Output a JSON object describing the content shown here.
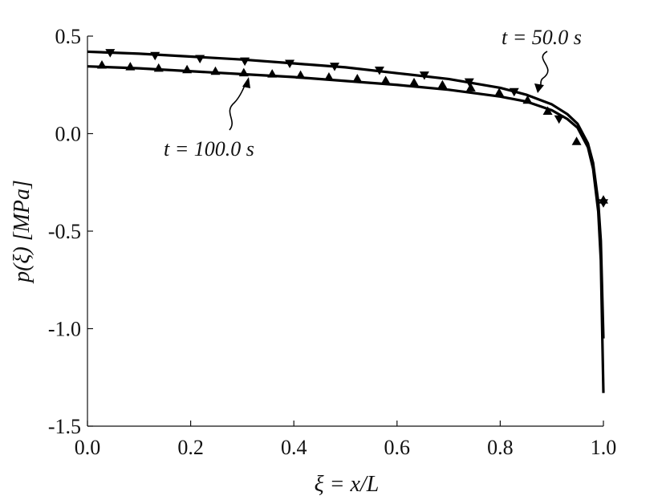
{
  "chart_data": {
    "type": "line",
    "title": "",
    "xlabel": "ξ = x/L",
    "ylabel": "p(ξ) [MPa]",
    "xlim": [
      0.0,
      1.0
    ],
    "ylim": [
      -1.5,
      0.5
    ],
    "xticks": [
      0.0,
      0.2,
      0.4,
      0.6,
      0.8,
      1.0
    ],
    "xtick_labels": [
      "0.0",
      "0.2",
      "0.4",
      "0.6",
      "0.8",
      "1.0"
    ],
    "yticks": [
      0.5,
      0.0,
      -0.5,
      -1.0,
      -1.5
    ],
    "ytick_labels": [
      "0.5",
      "0.0",
      "-0.5",
      "-1.0",
      "-1.5"
    ],
    "grid": false,
    "series": [
      {
        "name": "t = 50.0 s",
        "color": "#000000",
        "line": {
          "x": [
            0.0,
            0.1,
            0.2,
            0.3,
            0.4,
            0.5,
            0.6,
            0.7,
            0.8,
            0.85,
            0.9,
            0.93,
            0.95,
            0.97,
            0.98,
            0.99,
            0.995,
            1.0
          ],
          "y": [
            0.42,
            0.41,
            0.395,
            0.38,
            0.36,
            0.34,
            0.31,
            0.28,
            0.235,
            0.2,
            0.15,
            0.1,
            0.05,
            -0.05,
            -0.15,
            -0.35,
            -0.55,
            -1.05
          ]
        },
        "markers": {
          "shape": "triangle-down",
          "x": [
            0.044,
            0.131,
            0.218,
            0.305,
            0.392,
            0.479,
            0.566,
            0.653,
            0.74,
            0.827,
            0.914,
            1.0
          ],
          "y": [
            0.415,
            0.4,
            0.385,
            0.372,
            0.36,
            0.345,
            0.325,
            0.3,
            0.265,
            0.215,
            0.075,
            -0.355
          ]
        }
      },
      {
        "name": "t = 100.0 s",
        "color": "#000000",
        "line": {
          "x": [
            0.0,
            0.1,
            0.2,
            0.3,
            0.4,
            0.5,
            0.6,
            0.7,
            0.8,
            0.85,
            0.9,
            0.93,
            0.95,
            0.97,
            0.98,
            0.99,
            0.995,
            1.0
          ],
          "y": [
            0.345,
            0.335,
            0.32,
            0.305,
            0.29,
            0.27,
            0.25,
            0.225,
            0.19,
            0.165,
            0.12,
            0.075,
            0.03,
            -0.07,
            -0.18,
            -0.4,
            -0.65,
            -1.33
          ]
        },
        "markers": {
          "shape": "triangle-up",
          "x": [
            0.028,
            0.083,
            0.138,
            0.193,
            0.248,
            0.303,
            0.358,
            0.413,
            0.468,
            0.523,
            0.578,
            0.633,
            0.688,
            0.743,
            0.798,
            0.853,
            0.892,
            0.948,
            1.0
          ],
          "y": [
            0.352,
            0.343,
            0.336,
            0.328,
            0.32,
            0.312,
            0.306,
            0.3,
            0.29,
            0.282,
            0.272,
            0.262,
            0.25,
            0.235,
            0.21,
            0.172,
            0.115,
            -0.04,
            -0.34
          ]
        }
      }
    ]
  }
}
